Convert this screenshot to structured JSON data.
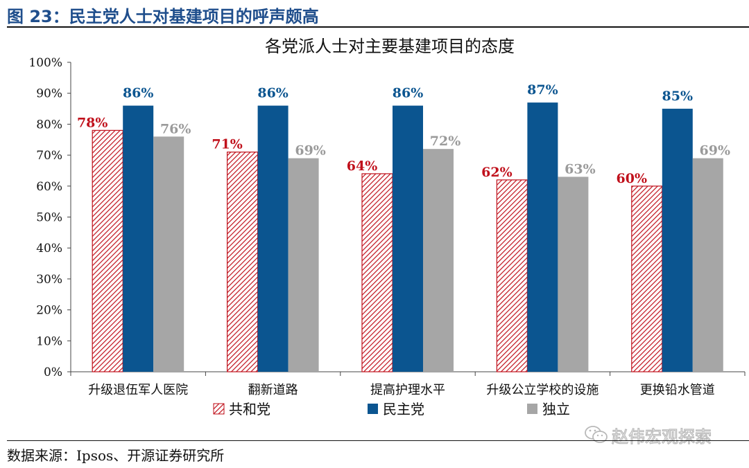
{
  "figure": {
    "title": "图 23：民主党人士对基建项目的呼声颇高",
    "source": "数据来源：Ipsos、开源证券研究所"
  },
  "watermark": {
    "icon": "wechat-icon",
    "text": "赵伟宏观探索"
  },
  "chart_data": {
    "type": "bar",
    "title": "各党派人士对主要基建项目的态度",
    "categories": [
      "升级退伍军人医院",
      "翻新道路",
      "提高护理水平",
      "升级公立学校的设施",
      "更换铅水管道"
    ],
    "series": [
      {
        "name": "共和党",
        "values": [
          78,
          71,
          64,
          62,
          60
        ],
        "labels": [
          "78%",
          "71%",
          "64%",
          "62%",
          "60%"
        ],
        "color": "#c0101b",
        "pattern": "diagonal-hatch"
      },
      {
        "name": "民主党",
        "values": [
          86,
          86,
          86,
          87,
          85
        ],
        "labels": [
          "86%",
          "86%",
          "86%",
          "87%",
          "85%"
        ],
        "color": "#0b5590",
        "pattern": "solid"
      },
      {
        "name": "独立",
        "values": [
          76,
          69,
          72,
          63,
          69
        ],
        "labels": [
          "76%",
          "69%",
          "72%",
          "63%",
          "69%"
        ],
        "color": "#a6a6a6",
        "pattern": "solid"
      }
    ],
    "yticks": [
      "0%",
      "10%",
      "20%",
      "30%",
      "40%",
      "50%",
      "60%",
      "70%",
      "80%",
      "90%",
      "100%"
    ],
    "ylim": [
      0,
      100
    ],
    "xlabel": "",
    "ylabel": "",
    "grid": false,
    "legend_position": "bottom"
  }
}
